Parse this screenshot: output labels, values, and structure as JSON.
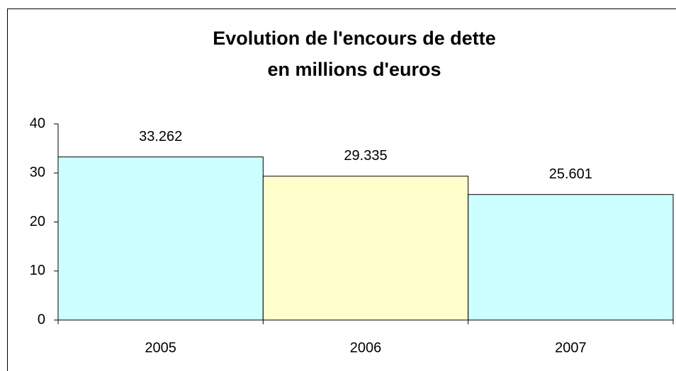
{
  "chart_data": {
    "type": "bar",
    "title": [
      "Evolution de l'encours de dette",
      "en millions d'euros"
    ],
    "categories": [
      "2005",
      "2006",
      "2007"
    ],
    "values": [
      33.262,
      29.335,
      25.601
    ],
    "colors": [
      "#ccffff",
      "#ffffcc",
      "#ccffff"
    ],
    "ylim": [
      0,
      40
    ],
    "yticks": [
      0,
      10,
      20,
      30,
      40
    ],
    "grid": false
  }
}
